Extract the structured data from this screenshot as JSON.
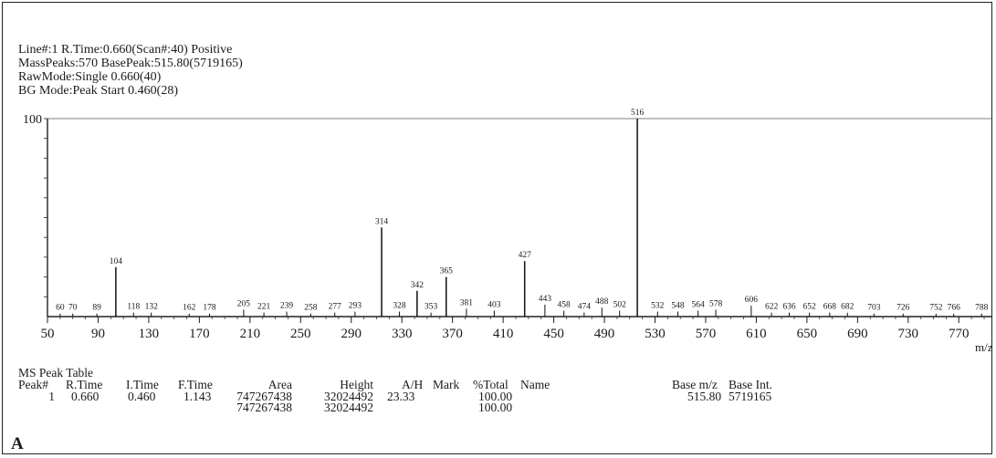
{
  "header": {
    "line1": "Line#:1   R.Time:0.660(Scan#:40)   Positive",
    "line2": "MassPeaks:570   BasePeak:515.80(5719165)",
    "line3": "RawMode:Single 0.660(40)",
    "line4": "BG Mode:Peak Start 0.460(28)"
  },
  "chart_data": {
    "type": "bar",
    "xlim": [
      50,
      790
    ],
    "ylim": [
      0,
      100
    ],
    "y_tick_label": "100",
    "x_ticks": [
      50,
      90,
      130,
      170,
      210,
      250,
      290,
      330,
      370,
      410,
      450,
      490,
      530,
      570,
      610,
      650,
      690,
      730,
      770
    ],
    "x_unit_label": "m/z",
    "peaks": [
      {
        "mz": 60,
        "intensity": 1.5,
        "label": "60"
      },
      {
        "mz": 70,
        "intensity": 1.5,
        "label": "70"
      },
      {
        "mz": 89,
        "intensity": 1.5,
        "label": "89"
      },
      {
        "mz": 104,
        "intensity": 25,
        "label": "104"
      },
      {
        "mz": 118,
        "intensity": 2,
        "label": "118"
      },
      {
        "mz": 132,
        "intensity": 2,
        "label": "132"
      },
      {
        "mz": 162,
        "intensity": 1.5,
        "label": "162"
      },
      {
        "mz": 178,
        "intensity": 1.5,
        "label": "178"
      },
      {
        "mz": 205,
        "intensity": 3.5,
        "label": "205"
      },
      {
        "mz": 221,
        "intensity": 2,
        "label": "221"
      },
      {
        "mz": 239,
        "intensity": 2.5,
        "label": "239"
      },
      {
        "mz": 258,
        "intensity": 1.5,
        "label": "258"
      },
      {
        "mz": 277,
        "intensity": 2,
        "label": "277"
      },
      {
        "mz": 293,
        "intensity": 2.5,
        "label": "293"
      },
      {
        "mz": 314,
        "intensity": 45,
        "label": "314"
      },
      {
        "mz": 328,
        "intensity": 2.5,
        "label": "328"
      },
      {
        "mz": 342,
        "intensity": 13,
        "label": "342"
      },
      {
        "mz": 353,
        "intensity": 2,
        "label": "353"
      },
      {
        "mz": 365,
        "intensity": 20,
        "label": "365"
      },
      {
        "mz": 381,
        "intensity": 4,
        "label": "381"
      },
      {
        "mz": 403,
        "intensity": 3,
        "label": "403"
      },
      {
        "mz": 427,
        "intensity": 28,
        "label": "427"
      },
      {
        "mz": 443,
        "intensity": 6,
        "label": "443"
      },
      {
        "mz": 458,
        "intensity": 3,
        "label": "458"
      },
      {
        "mz": 474,
        "intensity": 2,
        "label": "474"
      },
      {
        "mz": 488,
        "intensity": 4.5,
        "label": "488"
      },
      {
        "mz": 502,
        "intensity": 3,
        "label": "502"
      },
      {
        "mz": 516,
        "intensity": 100,
        "label": "516"
      },
      {
        "mz": 532,
        "intensity": 2.5,
        "label": "532"
      },
      {
        "mz": 548,
        "intensity": 2.5,
        "label": "548"
      },
      {
        "mz": 564,
        "intensity": 3,
        "label": "564"
      },
      {
        "mz": 578,
        "intensity": 3.5,
        "label": "578"
      },
      {
        "mz": 606,
        "intensity": 5.5,
        "label": "606"
      },
      {
        "mz": 622,
        "intensity": 2,
        "label": "622"
      },
      {
        "mz": 636,
        "intensity": 2,
        "label": "636"
      },
      {
        "mz": 652,
        "intensity": 2,
        "label": "652"
      },
      {
        "mz": 668,
        "intensity": 2,
        "label": "668"
      },
      {
        "mz": 682,
        "intensity": 2,
        "label": "682"
      },
      {
        "mz": 703,
        "intensity": 1.5,
        "label": "703"
      },
      {
        "mz": 726,
        "intensity": 1.5,
        "label": "726"
      },
      {
        "mz": 752,
        "intensity": 1.5,
        "label": "752"
      },
      {
        "mz": 766,
        "intensity": 1.5,
        "label": "766"
      },
      {
        "mz": 788,
        "intensity": 1.5,
        "label": "788"
      }
    ]
  },
  "peak_table": {
    "title": "MS Peak Table",
    "columns": {
      "peak": "Peak#",
      "rtime": "R.Time",
      "itime": "I.Time",
      "ftime": "F.Time",
      "area": "Area",
      "height": "Height",
      "ah": "A/H",
      "mark": "Mark",
      "total": "%Total",
      "name": "Name",
      "base_mz": "Base m/z",
      "base_int": "Base Int."
    },
    "row": {
      "peak": "1",
      "rtime": "0.660",
      "itime": "0.460",
      "ftime": "1.143",
      "area": "747267438",
      "height": "32024492",
      "ah": "23.33",
      "mark": "",
      "total": "100.00",
      "name": "",
      "base_mz": "515.80",
      "base_int": "5719165"
    },
    "totals": {
      "area": "747267438",
      "height": "32024492",
      "total": "100.00"
    }
  },
  "panel_label": "A"
}
